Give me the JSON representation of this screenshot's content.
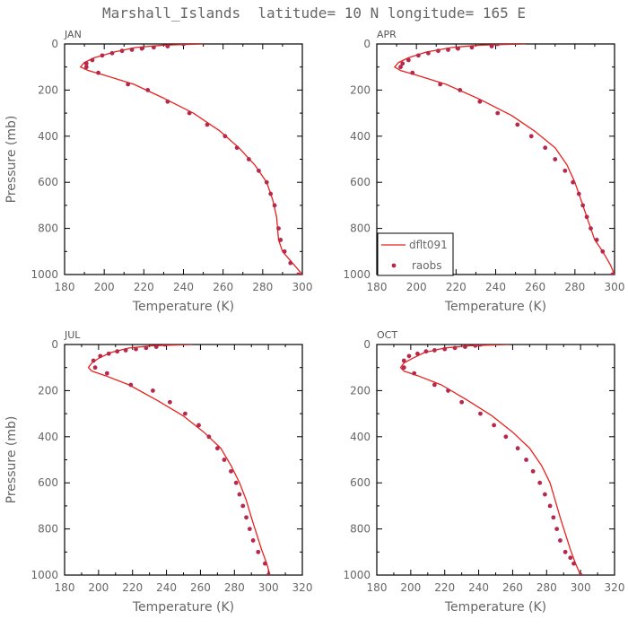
{
  "figure": {
    "title": "Marshall_Islands  latitude= 10 N longitude= 165 E"
  },
  "legend": {
    "model_label": "dflt091",
    "obs_label": "raobs"
  },
  "colors": {
    "model_line": "#e8211c",
    "obs_dot": "#b5294e",
    "axis": "#000000",
    "text": "#666666"
  },
  "chart_data": [
    {
      "type": "line",
      "panel_label": "JAN",
      "xlabel": "Temperature (K)",
      "ylabel": "Pressure (mb)",
      "xlim": [
        180,
        300
      ],
      "xticks": [
        180,
        200,
        220,
        240,
        260,
        280,
        300
      ],
      "ylim": [
        1000,
        0
      ],
      "yticks": [
        0,
        200,
        400,
        600,
        800,
        1000
      ],
      "series": [
        {
          "name": "dflt091",
          "kind": "line",
          "x": [
            250,
            230,
            216,
            205,
            195,
            190,
            188,
            192,
            200,
            215,
            230,
            245,
            258,
            268,
            276,
            282,
            285,
            287,
            287.5,
            288,
            290,
            296,
            300
          ],
          "y": [
            0,
            5,
            15,
            35,
            60,
            80,
            100,
            115,
            135,
            175,
            235,
            300,
            375,
            450,
            525,
            600,
            675,
            750,
            800,
            850,
            900,
            960,
            1000
          ]
        },
        {
          "name": "raobs",
          "kind": "scatter",
          "x": [
            240,
            232,
            225,
            219,
            214,
            209,
            204,
            199,
            194,
            191,
            191,
            197,
            212,
            222,
            232,
            243,
            252,
            261,
            267,
            273,
            278,
            282,
            284,
            286,
            288,
            289,
            291,
            294,
            298
          ],
          "y": [
            0,
            10,
            15,
            20,
            25,
            30,
            40,
            50,
            70,
            85,
            100,
            125,
            175,
            200,
            250,
            300,
            350,
            400,
            450,
            500,
            550,
            600,
            650,
            700,
            800,
            850,
            900,
            950,
            1000
          ]
        }
      ]
    },
    {
      "type": "line",
      "panel_label": "APR",
      "xlabel": "Temperature (K)",
      "ylabel": "",
      "xlim": [
        180,
        300
      ],
      "xticks": [
        180,
        200,
        220,
        240,
        260,
        280,
        300
      ],
      "ylim": [
        1000,
        0
      ],
      "yticks": [
        0,
        200,
        400,
        600,
        800,
        1000
      ],
      "series": [
        {
          "name": "dflt091",
          "kind": "line",
          "x": [
            255,
            232,
            218,
            205,
            196,
            191,
            189,
            192,
            200,
            215,
            232,
            248,
            260,
            270,
            276,
            280,
            283,
            286,
            288,
            290,
            294,
            298,
            300
          ],
          "y": [
            0,
            5,
            15,
            35,
            60,
            80,
            100,
            115,
            135,
            175,
            240,
            310,
            380,
            450,
            525,
            600,
            675,
            750,
            800,
            850,
            900,
            960,
            1000
          ]
        },
        {
          "name": "raobs",
          "kind": "scatter",
          "x": [
            241,
            238,
            228,
            221,
            216,
            211,
            206,
            201,
            196,
            193,
            192,
            198,
            212,
            222,
            232,
            241,
            251,
            258,
            265,
            270,
            275,
            279,
            282,
            284,
            286,
            288,
            291,
            294,
            299
          ],
          "y": [
            0,
            10,
            15,
            20,
            25,
            30,
            40,
            50,
            70,
            85,
            100,
            125,
            175,
            200,
            250,
            300,
            350,
            400,
            450,
            500,
            550,
            600,
            650,
            700,
            750,
            800,
            850,
            900,
            1000
          ]
        }
      ]
    },
    {
      "type": "line",
      "panel_label": "JUL",
      "xlabel": "Temperature (K)",
      "ylabel": "Pressure (mb)",
      "xlim": [
        180,
        320
      ],
      "xticks": [
        180,
        200,
        220,
        240,
        260,
        280,
        300,
        320
      ],
      "ylim": [
        1000,
        0
      ],
      "yticks": [
        0,
        200,
        400,
        600,
        800,
        1000
      ],
      "series": [
        {
          "name": "dflt091",
          "kind": "line",
          "x": [
            255,
            232,
            218,
            207,
            200,
            196,
            194,
            196,
            204,
            218,
            234,
            250,
            262,
            272,
            278,
            283,
            287,
            290,
            293,
            296,
            299,
            301
          ],
          "y": [
            0,
            5,
            15,
            35,
            60,
            80,
            100,
            115,
            135,
            175,
            240,
            310,
            380,
            450,
            525,
            600,
            675,
            750,
            820,
            890,
            950,
            1000
          ]
        },
        {
          "name": "raobs",
          "kind": "scatter",
          "x": [
            239,
            234,
            228,
            222,
            216,
            211,
            206,
            201,
            197,
            198,
            205,
            219,
            232,
            242,
            251,
            259,
            265,
            270,
            274,
            278,
            281,
            283,
            285,
            287,
            289,
            291,
            294,
            298,
            300
          ],
          "y": [
            0,
            10,
            15,
            20,
            25,
            30,
            40,
            50,
            70,
            100,
            125,
            175,
            200,
            250,
            300,
            350,
            400,
            450,
            500,
            550,
            600,
            650,
            700,
            750,
            800,
            850,
            900,
            950,
            1000
          ]
        }
      ]
    },
    {
      "type": "line",
      "panel_label": "OCT",
      "xlabel": "Temperature (K)",
      "ylabel": "",
      "xlim": [
        180,
        320
      ],
      "xticks": [
        180,
        200,
        220,
        240,
        260,
        280,
        300,
        320
      ],
      "ylim": [
        1000,
        0
      ],
      "yticks": [
        0,
        200,
        400,
        600,
        800,
        1000
      ],
      "series": [
        {
          "name": "dflt091",
          "kind": "line",
          "x": [
            258,
            235,
            220,
            208,
            201,
            196,
            194,
            196,
            204,
            218,
            233,
            248,
            260,
            270,
            277,
            282,
            285,
            288,
            291,
            294,
            297,
            300
          ],
          "y": [
            0,
            5,
            15,
            35,
            60,
            80,
            100,
            115,
            135,
            175,
            240,
            310,
            380,
            450,
            525,
            600,
            675,
            750,
            820,
            890,
            950,
            1000
          ]
        },
        {
          "name": "raobs",
          "kind": "scatter",
          "x": [
            241,
            238,
            232,
            226,
            220,
            214,
            209,
            204,
            199,
            196,
            196,
            202,
            214,
            222,
            230,
            241,
            249,
            256,
            263,
            268,
            272,
            276,
            279,
            282,
            284,
            286,
            288,
            291,
            294,
            296,
            300
          ],
          "y": [
            0,
            5,
            10,
            15,
            20,
            25,
            30,
            40,
            50,
            70,
            100,
            125,
            175,
            200,
            250,
            300,
            350,
            400,
            450,
            500,
            550,
            600,
            650,
            700,
            750,
            800,
            850,
            900,
            925,
            950,
            1000
          ]
        }
      ]
    }
  ]
}
